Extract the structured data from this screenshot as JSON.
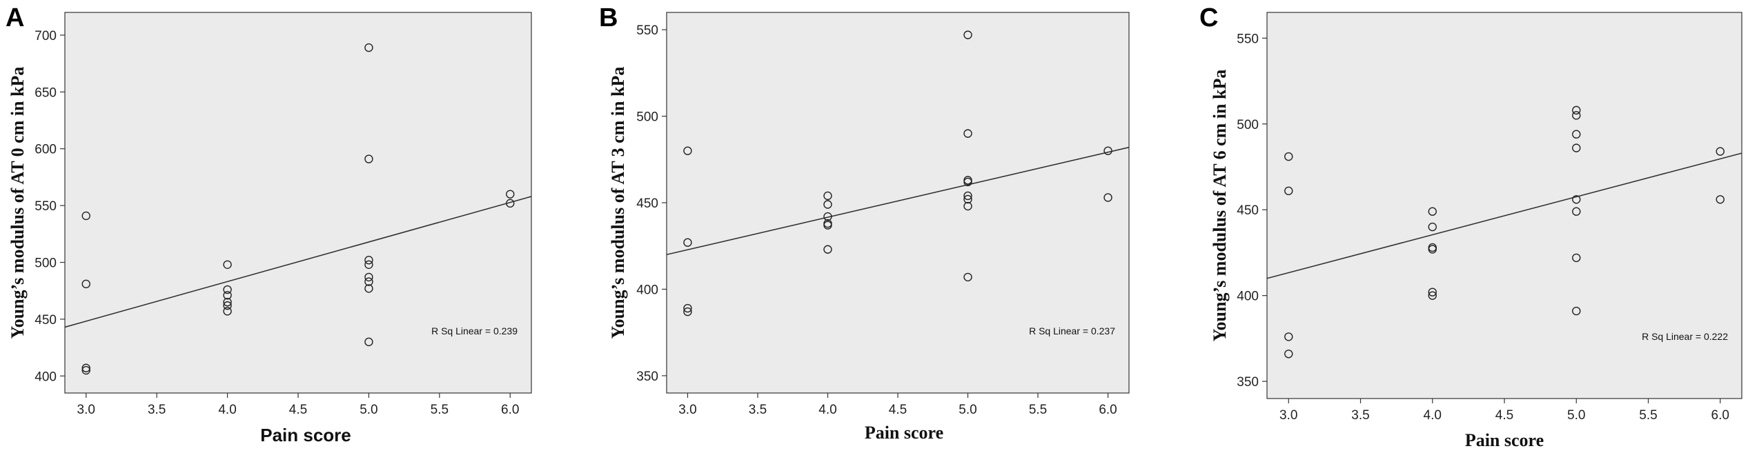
{
  "chart_data": [
    {
      "type": "scatter",
      "panel_label": "A",
      "xlabel": "Pain score",
      "ylabel": "Young’s modulus of AT 0 cm in kPa",
      "xlim": [
        2.85,
        6.15
      ],
      "ylim": [
        385,
        720
      ],
      "x_ticks": [
        3.0,
        3.5,
        4.0,
        4.5,
        5.0,
        5.5,
        6.0
      ],
      "x_tick_labels": [
        "3.0",
        "3.5",
        "4.0",
        "4.5",
        "5.0",
        "5.5",
        "6.0"
      ],
      "y_ticks": [
        400,
        450,
        500,
        550,
        600,
        650,
        700
      ],
      "y_tick_labels": [
        "400",
        "450",
        "500",
        "550",
        "600",
        "650",
        "700"
      ],
      "points": [
        {
          "x": 3.0,
          "y": 541
        },
        {
          "x": 3.0,
          "y": 481
        },
        {
          "x": 3.0,
          "y": 407
        },
        {
          "x": 3.0,
          "y": 405
        },
        {
          "x": 4.0,
          "y": 498
        },
        {
          "x": 4.0,
          "y": 476
        },
        {
          "x": 4.0,
          "y": 471
        },
        {
          "x": 4.0,
          "y": 465
        },
        {
          "x": 4.0,
          "y": 462
        },
        {
          "x": 4.0,
          "y": 457
        },
        {
          "x": 5.0,
          "y": 689
        },
        {
          "x": 5.0,
          "y": 591
        },
        {
          "x": 5.0,
          "y": 502
        },
        {
          "x": 5.0,
          "y": 498
        },
        {
          "x": 5.0,
          "y": 487
        },
        {
          "x": 5.0,
          "y": 483
        },
        {
          "x": 5.0,
          "y": 477
        },
        {
          "x": 5.0,
          "y": 430
        },
        {
          "x": 6.0,
          "y": 560
        },
        {
          "x": 6.0,
          "y": 552
        }
      ],
      "fit_line": {
        "x": [
          2.85,
          6.15
        ],
        "y": [
          443,
          558
        ]
      },
      "annotation": "R Sq Linear = 0.239",
      "grid": false,
      "background": "#ebebeb"
    },
    {
      "type": "scatter",
      "panel_label": "B",
      "xlabel": "Pain score",
      "ylabel": "Young’s modulus of AT 3 cm in kPa",
      "xlim": [
        2.85,
        6.15
      ],
      "ylim": [
        340,
        560
      ],
      "x_ticks": [
        3.0,
        3.5,
        4.0,
        4.5,
        5.0,
        5.5,
        6.0
      ],
      "x_tick_labels": [
        "3.0",
        "3.5",
        "4.0",
        "4.5",
        "5.0",
        "5.5",
        "6.0"
      ],
      "y_ticks": [
        350,
        400,
        450,
        500,
        550
      ],
      "y_tick_labels": [
        "350",
        "400",
        "450",
        "500",
        "550"
      ],
      "points": [
        {
          "x": 3.0,
          "y": 480
        },
        {
          "x": 3.0,
          "y": 427
        },
        {
          "x": 3.0,
          "y": 389
        },
        {
          "x": 3.0,
          "y": 387
        },
        {
          "x": 4.0,
          "y": 454
        },
        {
          "x": 4.0,
          "y": 449
        },
        {
          "x": 4.0,
          "y": 442
        },
        {
          "x": 4.0,
          "y": 438
        },
        {
          "x": 4.0,
          "y": 437
        },
        {
          "x": 4.0,
          "y": 423
        },
        {
          "x": 5.0,
          "y": 547
        },
        {
          "x": 5.0,
          "y": 490
        },
        {
          "x": 5.0,
          "y": 463
        },
        {
          "x": 5.0,
          "y": 462
        },
        {
          "x": 5.0,
          "y": 454
        },
        {
          "x": 5.0,
          "y": 452
        },
        {
          "x": 5.0,
          "y": 448
        },
        {
          "x": 5.0,
          "y": 407
        },
        {
          "x": 6.0,
          "y": 480
        },
        {
          "x": 6.0,
          "y": 453
        }
      ],
      "fit_line": {
        "x": [
          2.85,
          6.15
        ],
        "y": [
          420,
          482
        ]
      },
      "annotation": "R Sq Linear = 0.237",
      "grid": false,
      "background": "#ebebeb"
    },
    {
      "type": "scatter",
      "panel_label": "C",
      "xlabel": "Pain score",
      "ylabel": "Young’s modulus of AT 6 cm in kPa",
      "xlim": [
        2.85,
        6.15
      ],
      "ylim": [
        340,
        565
      ],
      "x_ticks": [
        3.0,
        3.5,
        4.0,
        4.5,
        5.0,
        5.5,
        6.0
      ],
      "x_tick_labels": [
        "3.0",
        "3.5",
        "4.0",
        "4.5",
        "5.0",
        "5.5",
        "6.0"
      ],
      "y_ticks": [
        350,
        400,
        450,
        500,
        550
      ],
      "y_tick_labels": [
        "350",
        "400",
        "450",
        "500",
        "550"
      ],
      "points": [
        {
          "x": 3.0,
          "y": 481
        },
        {
          "x": 3.0,
          "y": 461
        },
        {
          "x": 3.0,
          "y": 376
        },
        {
          "x": 3.0,
          "y": 366
        },
        {
          "x": 4.0,
          "y": 449
        },
        {
          "x": 4.0,
          "y": 440
        },
        {
          "x": 4.0,
          "y": 428
        },
        {
          "x": 4.0,
          "y": 427
        },
        {
          "x": 4.0,
          "y": 402
        },
        {
          "x": 4.0,
          "y": 400
        },
        {
          "x": 5.0,
          "y": 508
        },
        {
          "x": 5.0,
          "y": 505
        },
        {
          "x": 5.0,
          "y": 494
        },
        {
          "x": 5.0,
          "y": 486
        },
        {
          "x": 5.0,
          "y": 456
        },
        {
          "x": 5.0,
          "y": 449
        },
        {
          "x": 5.0,
          "y": 422
        },
        {
          "x": 5.0,
          "y": 391
        },
        {
          "x": 6.0,
          "y": 484
        },
        {
          "x": 6.0,
          "y": 456
        }
      ],
      "fit_line": {
        "x": [
          2.85,
          6.15
        ],
        "y": [
          410,
          483
        ]
      },
      "annotation": "R Sq Linear = 0.222",
      "grid": false,
      "background": "#ebebeb"
    }
  ]
}
